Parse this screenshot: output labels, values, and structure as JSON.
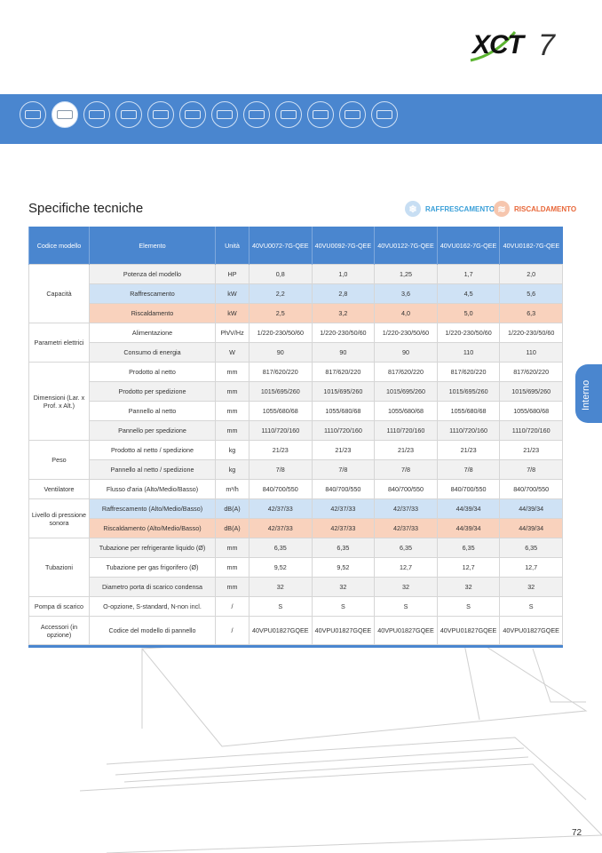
{
  "brand": {
    "logo_text": "XCT7"
  },
  "category_icons": [
    "cassette-4way-icon",
    "cassette-1way-icon",
    "cassette-compact-icon",
    "cassette-round-icon",
    "duct-icon",
    "duct-slim-icon",
    "duct-high-pressure-icon",
    "wall-mounted-icon",
    "console-icon",
    "ceiling-floor-icon",
    "floor-standing-icon",
    "ahu-icon"
  ],
  "active_icon_index": 1,
  "title": "Specifiche tecniche",
  "legend": {
    "cooling": "RAFFRESCAMENTO",
    "heating": "RISCALDAMENTO"
  },
  "colors": {
    "accent": "#4a86cf",
    "cooling": "#cfe2f5",
    "heating": "#f9d2bd"
  },
  "table": {
    "headers": [
      "Codice modello",
      "Elemento",
      "Unità",
      "40VU0072-7G-QEE",
      "40VU0092-7G-QEE",
      "40VU0122-7G-QEE",
      "40VU0162-7G-QEE",
      "40VU0182-7G-QEE"
    ],
    "groups": [
      {
        "label": "Capacità",
        "rows": [
          {
            "item": "Potenza del modello",
            "unit": "HP",
            "values": [
              "0,8",
              "1,0",
              "1,25",
              "1,7",
              "2,0"
            ],
            "style": "alt"
          },
          {
            "item": "Raffrescamento",
            "unit": "kW",
            "values": [
              "2,2",
              "2,8",
              "3,6",
              "4,5",
              "5,6"
            ],
            "style": "cool"
          },
          {
            "item": "Riscaldamento",
            "unit": "kW",
            "values": [
              "2,5",
              "3,2",
              "4,0",
              "5,0",
              "6,3"
            ],
            "style": "heat"
          }
        ]
      },
      {
        "label": "Parametri elettrici",
        "rows": [
          {
            "item": "Alimentazione",
            "unit": "Ph/V/Hz",
            "values": [
              "1/220-230/50/60",
              "1/220-230/50/60",
              "1/220-230/50/60",
              "1/220-230/50/60",
              "1/220-230/50/60"
            ],
            "style": ""
          },
          {
            "item": "Consumo di energia",
            "unit": "W",
            "values": [
              "90",
              "90",
              "90",
              "110",
              "110"
            ],
            "style": "alt"
          }
        ]
      },
      {
        "label": "Dimensioni (Lar. x Prof. x Alt.)",
        "rows": [
          {
            "item": "Prodotto al netto",
            "unit": "mm",
            "values": [
              "817/620/220",
              "817/620/220",
              "817/620/220",
              "817/620/220",
              "817/620/220"
            ],
            "style": ""
          },
          {
            "item": "Prodotto per spedizione",
            "unit": "mm",
            "values": [
              "1015/695/260",
              "1015/695/260",
              "1015/695/260",
              "1015/695/260",
              "1015/695/260"
            ],
            "style": "alt"
          },
          {
            "item": "Pannello al netto",
            "unit": "mm",
            "values": [
              "1055/680/68",
              "1055/680/68",
              "1055/680/68",
              "1055/680/68",
              "1055/680/68"
            ],
            "style": ""
          },
          {
            "item": "Pannello per spedizione",
            "unit": "mm",
            "values": [
              "1110/720/160",
              "1110/720/160",
              "1110/720/160",
              "1110/720/160",
              "1110/720/160"
            ],
            "style": "alt"
          }
        ]
      },
      {
        "label": "Peso",
        "rows": [
          {
            "item": "Prodotto al netto / spedizione",
            "unit": "kg",
            "values": [
              "21/23",
              "21/23",
              "21/23",
              "21/23",
              "21/23"
            ],
            "style": ""
          },
          {
            "item": "Pannello al netto / spedizione",
            "unit": "kg",
            "values": [
              "7/8",
              "7/8",
              "7/8",
              "7/8",
              "7/8"
            ],
            "style": "alt"
          }
        ]
      },
      {
        "label": "Ventilatore",
        "rows": [
          {
            "item": "Flusso d'aria (Alto/Medio/Basso)",
            "unit": "m³/h",
            "values": [
              "840/700/550",
              "840/700/550",
              "840/700/550",
              "840/700/550",
              "840/700/550"
            ],
            "style": ""
          }
        ]
      },
      {
        "label": "Livello di pressione sonora",
        "rows": [
          {
            "item": "Raffrescamento (Alto/Medio/Basso)",
            "unit": "dB(A)",
            "values": [
              "42/37/33",
              "42/37/33",
              "42/37/33",
              "44/39/34",
              "44/39/34"
            ],
            "style": "cool"
          },
          {
            "item": "Riscaldamento (Alto/Medio/Basso)",
            "unit": "dB(A)",
            "values": [
              "42/37/33",
              "42/37/33",
              "42/37/33",
              "44/39/34",
              "44/39/34"
            ],
            "style": "heat"
          }
        ]
      },
      {
        "label": "Tubazioni",
        "rows": [
          {
            "item": "Tubazione per refrigerante liquido (Ø)",
            "unit": "mm",
            "values": [
              "6,35",
              "6,35",
              "6,35",
              "6,35",
              "6,35"
            ],
            "style": "alt"
          },
          {
            "item": "Tubazione per gas frigorifero (Ø)",
            "unit": "mm",
            "values": [
              "9,52",
              "9,52",
              "12,7",
              "12,7",
              "12,7"
            ],
            "style": ""
          },
          {
            "item": "Diametro porta di scarico condensa",
            "unit": "mm",
            "values": [
              "32",
              "32",
              "32",
              "32",
              "32"
            ],
            "style": "alt"
          }
        ]
      },
      {
        "label": "Pompa di scarico",
        "rows": [
          {
            "item": "O-opzione, S-standard, N-non incl.",
            "unit": "/",
            "values": [
              "S",
              "S",
              "S",
              "S",
              "S"
            ],
            "style": ""
          }
        ]
      },
      {
        "label": "Accessori (in opzione)",
        "rows": [
          {
            "item": "Codice del modello di pannello",
            "unit": "/",
            "values": [
              "40VPU01827GQEE",
              "40VPU01827GQEE",
              "40VPU01827GQEE",
              "40VPU01827GQEE",
              "40VPU01827GQEE"
            ],
            "style": "tall"
          }
        ]
      }
    ]
  },
  "side_tab": "Interno",
  "page_number": "72"
}
